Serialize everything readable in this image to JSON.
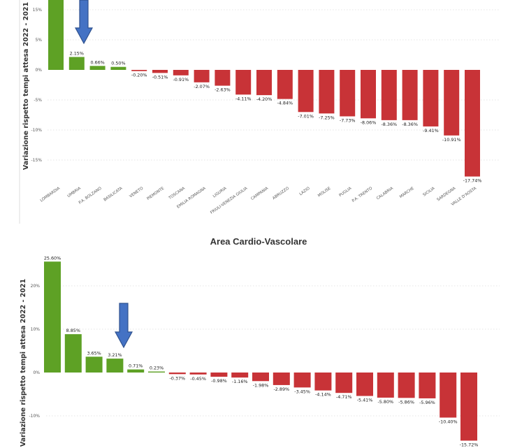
{
  "chart_data": [
    {
      "type": "bar",
      "title": "",
      "ylabel": "Variazione rispetto tempi attesa 2022 - 2021",
      "yticks": [
        "15%",
        "5%",
        "0%",
        "-5%",
        "-10%",
        "-15%"
      ],
      "ylim": [
        -20,
        15
      ],
      "categories": [
        "LOMBARDIA",
        "UMBRIA",
        "P.A. BOLZANO",
        "BASILICATA",
        "VENETO",
        "PIEMONTE",
        "TOSCANA",
        "EMILIA ROMAGNA",
        "LIGURIA",
        "FRIULI-VENEZIA GIULIA",
        "CAMPANIA",
        "ABRUZZO",
        "LAZIO",
        "MOLISE",
        "PUGLIA",
        "P.A. TRENTO",
        "CALABRIA",
        "MARCHE",
        "SICILIA",
        "SARDEGNA",
        "VALLE D'AOSTA"
      ],
      "values": [
        14.5,
        2.15,
        0.66,
        0.5,
        -0.2,
        -0.51,
        -0.91,
        -2.07,
        -2.63,
        -4.11,
        -4.2,
        -4.84,
        -7.01,
        -7.25,
        -7.73,
        -8.06,
        -8.36,
        -8.36,
        -9.41,
        -10.91,
        -17.74
      ],
      "data_labels": [
        "",
        "2.15%",
        "0.66%",
        "0.50%",
        "-0.20%",
        "-0.51%",
        "-0.91%",
        "-2.07%",
        "-2.63%",
        "-4.11%",
        "-4.20%",
        "-4.84%",
        "-7.01%",
        "-7.25%",
        "-7.73%",
        "-8.06%",
        "-8.36%",
        "-8.36%",
        "-9.41%",
        "-10.91%",
        "-17.74%"
      ],
      "highlight_index": 1,
      "colors": {
        "positive": "#5ea125",
        "negative": "#c83337"
      },
      "grid": true,
      "legend": "none"
    },
    {
      "type": "bar",
      "title": "Area Cardio-Vascolare",
      "ylabel": "Variazione rispetto tempi attesa 2022 - 2021",
      "yticks": [
        "20%",
        "10%",
        "0%",
        "-10%"
      ],
      "ylim": [
        -17,
        27
      ],
      "categories": [
        "",
        "",
        "",
        "",
        "",
        "",
        "",
        "",
        "",
        "",
        "",
        "",
        "",
        "",
        "",
        "",
        "",
        "",
        "",
        "",
        ""
      ],
      "values": [
        25.6,
        8.85,
        3.65,
        3.21,
        0.71,
        0.23,
        -0.37,
        -0.45,
        -0.98,
        -1.16,
        -1.98,
        -2.89,
        -3.45,
        -4.14,
        -4.71,
        -5.41,
        -5.8,
        -5.86,
        -5.96,
        -10.4,
        -15.72
      ],
      "data_labels": [
        "25.60%",
        "8.85%",
        "3.65%",
        "3.21%",
        "0.71%",
        "0.23%",
        "-0.37%",
        "-0.45%",
        "-0.98%",
        "-1.16%",
        "-1.98%",
        "-2.89%",
        "-3.45%",
        "-4.14%",
        "-4.71%",
        "-5.41%",
        "-5.80%",
        "-5.86%",
        "-5.96%",
        "-10.40%",
        "-15.72%"
      ],
      "highlight_index": 3,
      "colors": {
        "positive": "#5ea125",
        "negative": "#c83337"
      },
      "grid": true,
      "legend": "none"
    }
  ],
  "colors": {
    "arrow_fill": "#4472c4",
    "arrow_stroke": "#2f528f",
    "grid": "#dddddd",
    "axis_text": "#555555"
  }
}
